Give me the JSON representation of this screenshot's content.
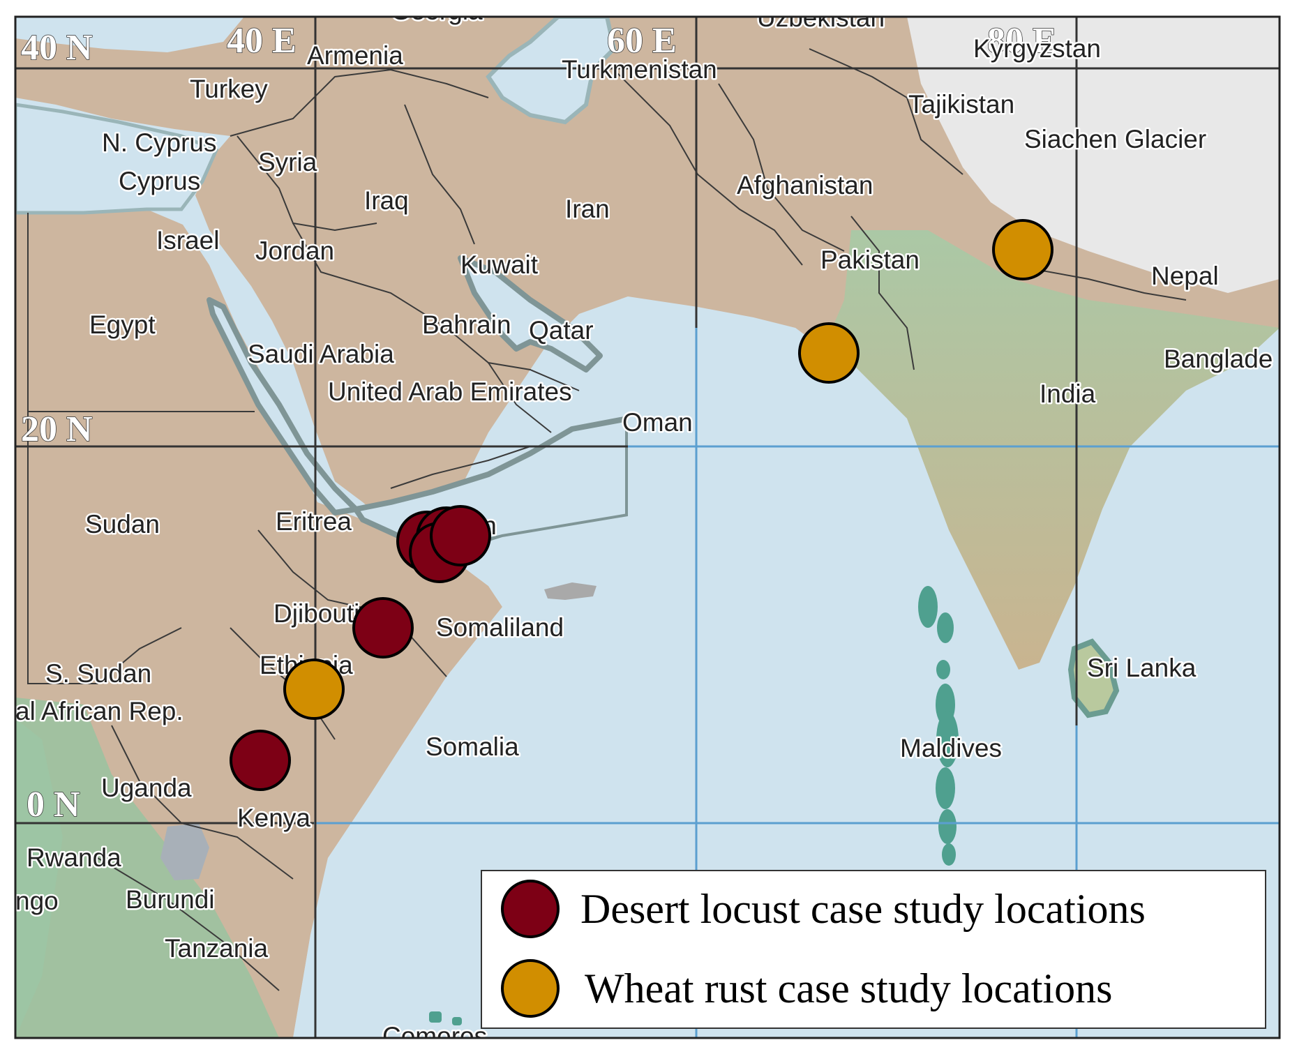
{
  "coordinate_labels": {
    "lat_40n": "40 N",
    "lat_20n": "20 N",
    "lat_0n": "0 N",
    "lon_40e": "40 E",
    "lon_60e": "60 E",
    "lon_80e": "80 E"
  },
  "countries": {
    "georgia": "Georgia",
    "uzbekistan": "Uzbekistan",
    "armenia": "Armenia",
    "turkmenistan": "Turkmenistan",
    "kyrgyzstan": "Kyrgyzstan",
    "turkey": "Turkey",
    "tajikistan": "Tajikistan",
    "n_cyprus": "N. Cyprus",
    "siachen": "Siachen Glacier",
    "syria": "Syria",
    "cyprus": "Cyprus",
    "afghanistan": "Afghanistan",
    "iraq": "Iraq",
    "iran": "Iran",
    "israel": "Israel",
    "jordan": "Jordan",
    "pakistan": "Pakistan",
    "kuwait": "Kuwait",
    "nepal": "Nepal",
    "egypt": "Egypt",
    "bahrain": "Bahrain",
    "qatar": "Qatar",
    "saudi": "Saudi Arabia",
    "bangladesh": "Banglade",
    "uae": "United Arab Emirates",
    "india": "India",
    "oman": "Oman",
    "sudan": "Sudan",
    "eritrea": "Eritrea",
    "yemen": "Yemen",
    "djibouti": "Djibouti",
    "somaliland": "Somaliland",
    "ethiopia": "Ethiopia",
    "s_sudan": "S. Sudan",
    "sri_lanka": "Sri Lanka",
    "car": "al African Rep.",
    "somalia": "Somalia",
    "maldives": "Maldives",
    "uganda": "Uganda",
    "kenya": "Kenya",
    "rwanda": "Rwanda",
    "congo": "ngo",
    "burundi": "Burundi",
    "tanzania": "Tanzania",
    "comoros": "Comoros"
  },
  "markers": {
    "desert_locust_count": 6,
    "wheat_rust_count": 3
  },
  "legend": {
    "desert_locust": "Desert locust case study locations",
    "wheat_rust": "Wheat rust case study locations"
  },
  "colors": {
    "desert_locust": "#7d0015",
    "wheat_rust": "#d18e00",
    "ocean": "#cfe3ee",
    "land": "#cdb8a2",
    "lowland": "#8ebf9f",
    "highland": "#ececec",
    "border": "#3a3a3a",
    "gridline": "#333333",
    "gridline_water": "#5b9fd0"
  }
}
